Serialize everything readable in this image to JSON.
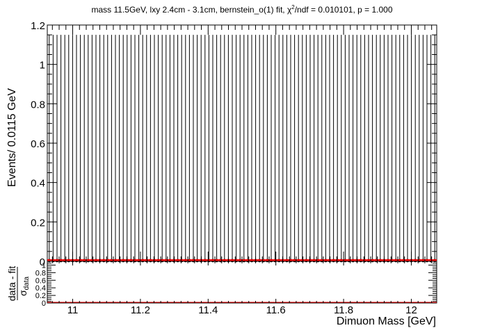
{
  "chart_data": [
    {
      "type": "bar",
      "panel": "main",
      "title": "mass 11.5GeV, lxy 2.4cm - 3.1cm, bernstein_o(1) fit, χ²/ndf = 0.010101, p = 1.000",
      "title_parts": {
        "prefix": "mass 11.5GeV, lxy 2.4cm - 3.1cm, bernstein_o(1) fit, χ",
        "sup": "2",
        "suffix": "/ndf = 0.010101, p = 1.000"
      },
      "ylabel": "Events/ 0.0115 GeV",
      "xlim": [
        10.925,
        12.075
      ],
      "ylim": [
        0,
        1.2
      ],
      "yticks": [
        0,
        0.2,
        0.4,
        0.6,
        0.8,
        1,
        1.2
      ],
      "ytick_labels": [
        "0",
        "0.2",
        "0.4",
        "0.6",
        "0.8",
        "1",
        "1.2"
      ],
      "bin_width": 0.0115,
      "n_bins": 100,
      "error_bar_high": 1.15,
      "data_values_all": 0,
      "fit_value": 0.005,
      "colors": {
        "fit": "#ff0000",
        "data": "#000000"
      }
    },
    {
      "type": "scatter",
      "panel": "pull",
      "ylabel_numerator": "data - fit",
      "ylabel_denominator": "σ",
      "ylabel_denominator_sub": "data",
      "xlabel": "Dimuon Mass [GeV]",
      "xlim": [
        10.925,
        12.075
      ],
      "ylim": [
        0,
        1.1
      ],
      "yticks": [
        0,
        0.2,
        0.4,
        0.6,
        0.8,
        1
      ],
      "ytick_labels": [
        "0",
        "0.2",
        "0.4",
        "0.6",
        "0.8",
        "1"
      ],
      "xticks": [
        11,
        11.2,
        11.4,
        11.6,
        11.8,
        12
      ],
      "xtick_labels": [
        "11",
        "11.2",
        "11.4",
        "11.6",
        "11.8",
        "12"
      ],
      "pull_values_all": 0,
      "colors": {
        "zero_line": "#ff0000"
      }
    }
  ]
}
